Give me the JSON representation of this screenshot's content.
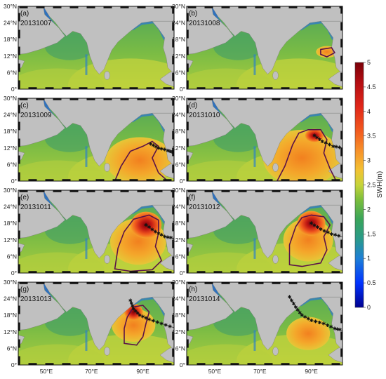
{
  "panels": [
    {
      "label": "(a)",
      "date": "20131007"
    },
    {
      "label": "(b)",
      "date": "20131008"
    },
    {
      "label": "(c)",
      "date": "20131009"
    },
    {
      "label": "(d)",
      "date": "20131010"
    },
    {
      "label": "(e)",
      "date": "20131011"
    },
    {
      "label": "(f)",
      "date": "20131012"
    },
    {
      "label": "(g)",
      "date": "20131013"
    },
    {
      "label": "(h)",
      "date": "20131014"
    }
  ],
  "lat_ticks": [
    "30°N",
    "24°N",
    "18°N",
    "12°N",
    "6°N",
    "0°"
  ],
  "lon_ticks": [
    "50°E",
    "70°E",
    "90°E"
  ],
  "colorbar": {
    "label": "SWH(m)",
    "min": 0,
    "max": 5,
    "ticks": [
      "0",
      "0.5",
      "1",
      "1.5",
      "2",
      "2.5",
      "3",
      "3.5",
      "4",
      "4.5",
      "5"
    ]
  },
  "colors": {
    "land": "#c0c0c0",
    "contour": "#5a1248",
    "track": "#333333"
  }
}
